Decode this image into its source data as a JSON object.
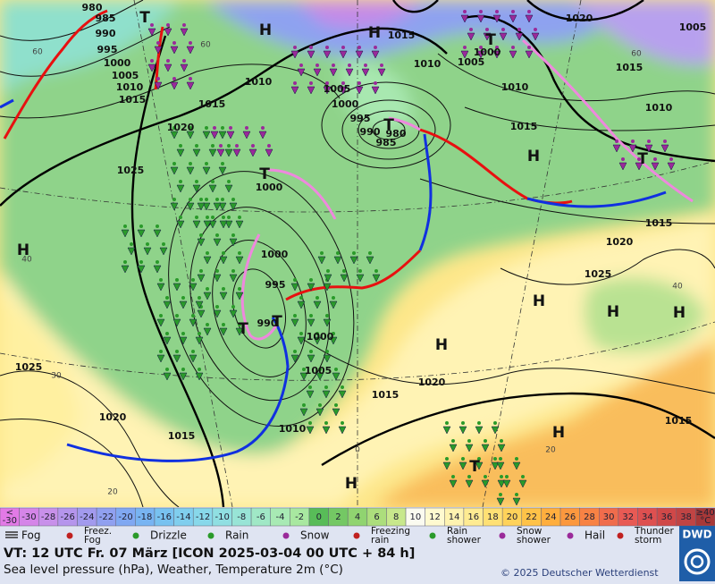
{
  "map": {
    "isobar_labels": [
      980,
      985,
      990,
      995,
      1000,
      1005,
      1010,
      1015,
      1020,
      1025,
      1015,
      1010,
      1005,
      1000,
      995,
      990,
      985,
      980,
      1010,
      1015,
      1005,
      1000,
      1010,
      1020,
      1005,
      1015,
      1010,
      1015,
      1000,
      1000,
      995,
      990,
      1000,
      1005,
      1010,
      1015,
      1020,
      1020,
      1025,
      1015,
      1015,
      1025,
      1020,
      1015
    ],
    "pressure_systems": [
      "H",
      "H",
      "T",
      "T",
      "H",
      "T",
      "T",
      "T",
      "H",
      "H",
      "H",
      "H",
      "H",
      "H",
      "T",
      "H",
      "T",
      "T"
    ],
    "contour_labels": [
      60,
      60,
      40,
      30,
      20,
      0,
      20,
      60,
      40
    ]
  },
  "temperature_scale": {
    "below": {
      "sign": "<",
      "value": -30,
      "color": "#e27ae6"
    },
    "cells": [
      {
        "value": -30,
        "color": "#d585e8"
      },
      {
        "value": -28,
        "color": "#c890ea"
      },
      {
        "value": -26,
        "color": "#b595ec"
      },
      {
        "value": -24,
        "color": "#a29aee"
      },
      {
        "value": -22,
        "color": "#90a0f0"
      },
      {
        "value": -20,
        "color": "#80a8f2"
      },
      {
        "value": -18,
        "color": "#78b4f2"
      },
      {
        "value": -16,
        "color": "#78c2f0"
      },
      {
        "value": -14,
        "color": "#80ceee"
      },
      {
        "value": -12,
        "color": "#88d8ea"
      },
      {
        "value": -10,
        "color": "#90dfe2"
      },
      {
        "value": -8,
        "color": "#98e4d6"
      },
      {
        "value": -6,
        "color": "#a0e8c6"
      },
      {
        "value": -4,
        "color": "#a8eab4"
      },
      {
        "value": -2,
        "color": "#a8e8a0"
      },
      {
        "value": 0,
        "color": "#58bc58"
      },
      {
        "value": 2,
        "color": "#74c864"
      },
      {
        "value": 4,
        "color": "#90d470"
      },
      {
        "value": 6,
        "color": "#acde7c"
      },
      {
        "value": 8,
        "color": "#c8e88c"
      },
      {
        "value": 10,
        "color": "#fbfbf0"
      },
      {
        "value": 12,
        "color": "#fffad0"
      },
      {
        "value": 14,
        "color": "#fff3b0"
      },
      {
        "value": 16,
        "color": "#ffeb92"
      },
      {
        "value": 18,
        "color": "#ffe074"
      },
      {
        "value": 20,
        "color": "#ffd25a"
      },
      {
        "value": 22,
        "color": "#ffc248"
      },
      {
        "value": 24,
        "color": "#ffae3e"
      },
      {
        "value": 26,
        "color": "#fc983e"
      },
      {
        "value": 28,
        "color": "#f88244"
      },
      {
        "value": 30,
        "color": "#f06c4c"
      },
      {
        "value": 32,
        "color": "#e85a54"
      },
      {
        "value": 34,
        "color": "#de5050"
      },
      {
        "value": 36,
        "color": "#d04848"
      },
      {
        "value": 38,
        "color": "#c04444"
      }
    ],
    "above": {
      "sign": "≥",
      "value": 40,
      "color": "#a83838"
    },
    "unit": "°C"
  },
  "legend": [
    [
      "Fog"
    ],
    [
      "Freez.",
      "Fog"
    ],
    [
      "Drizzle"
    ],
    [
      "Rain"
    ],
    [
      "Snow"
    ],
    [
      "Freezing",
      "rain"
    ],
    [
      "Rain",
      "shower"
    ],
    [
      "Snow",
      "shower"
    ],
    [
      "Hail"
    ],
    [
      "Thunder",
      "storm"
    ]
  ],
  "footer": {
    "valid_time": "VT: 12 UTC Fr.  07 März [ICON 2025-03-04  00 UTC + 84 h]",
    "subtitle": "Sea level pressure (hPa), Weather, Temperature 2m (°C)",
    "copyright": "© 2025 Deutscher Wetterdienst",
    "logo": "DWD"
  }
}
